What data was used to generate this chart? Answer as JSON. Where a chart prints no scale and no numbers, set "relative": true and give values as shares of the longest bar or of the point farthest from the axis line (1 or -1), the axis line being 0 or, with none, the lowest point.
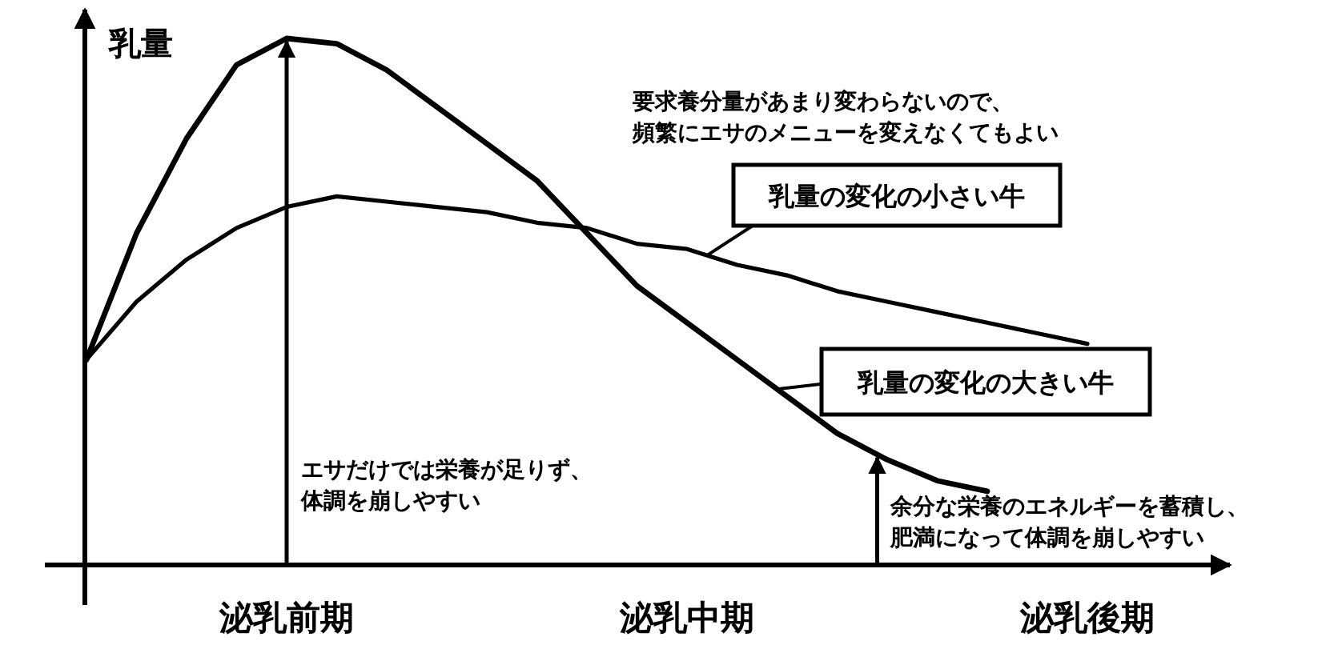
{
  "chart_data": {
    "type": "line",
    "relative": true,
    "ylabel": "乳量",
    "categories": [
      null,
      null,
      null,
      null,
      "泌乳前期",
      null,
      null,
      null,
      null,
      null,
      null,
      null,
      "泌乳中期",
      null,
      null,
      null,
      null,
      null,
      null,
      null,
      "泌乳後期"
    ],
    "series": [
      {
        "name": "乳量の変化の小さい牛",
        "color": "#000000",
        "values": [
          0.39,
          0.5,
          0.58,
          0.64,
          0.68,
          0.7,
          0.69,
          0.68,
          0.67,
          0.65,
          0.64,
          0.61,
          0.6,
          0.57,
          0.55,
          0.52,
          0.5,
          0.48,
          0.46,
          0.44,
          0.42
        ]
      },
      {
        "name": "乳量の変化の大きい牛",
        "color": "#000000",
        "values": [
          0.39,
          0.63,
          0.81,
          0.95,
          1.0,
          0.99,
          0.94,
          0.87,
          0.8,
          0.73,
          0.63,
          0.53,
          0.46,
          0.39,
          0.32,
          0.25,
          0.2,
          0.16,
          0.14,
          null,
          null
        ]
      }
    ],
    "annotations": [
      "要求養分量があまり変わらないので、頻繁にエサのメニューを変えなくてもよい",
      "エサだけでは栄養が足りず、体調を崩しやすい",
      "余分な栄養のエネルギーを蓄積し、肥満になって体調を崩しやすい"
    ]
  }
}
